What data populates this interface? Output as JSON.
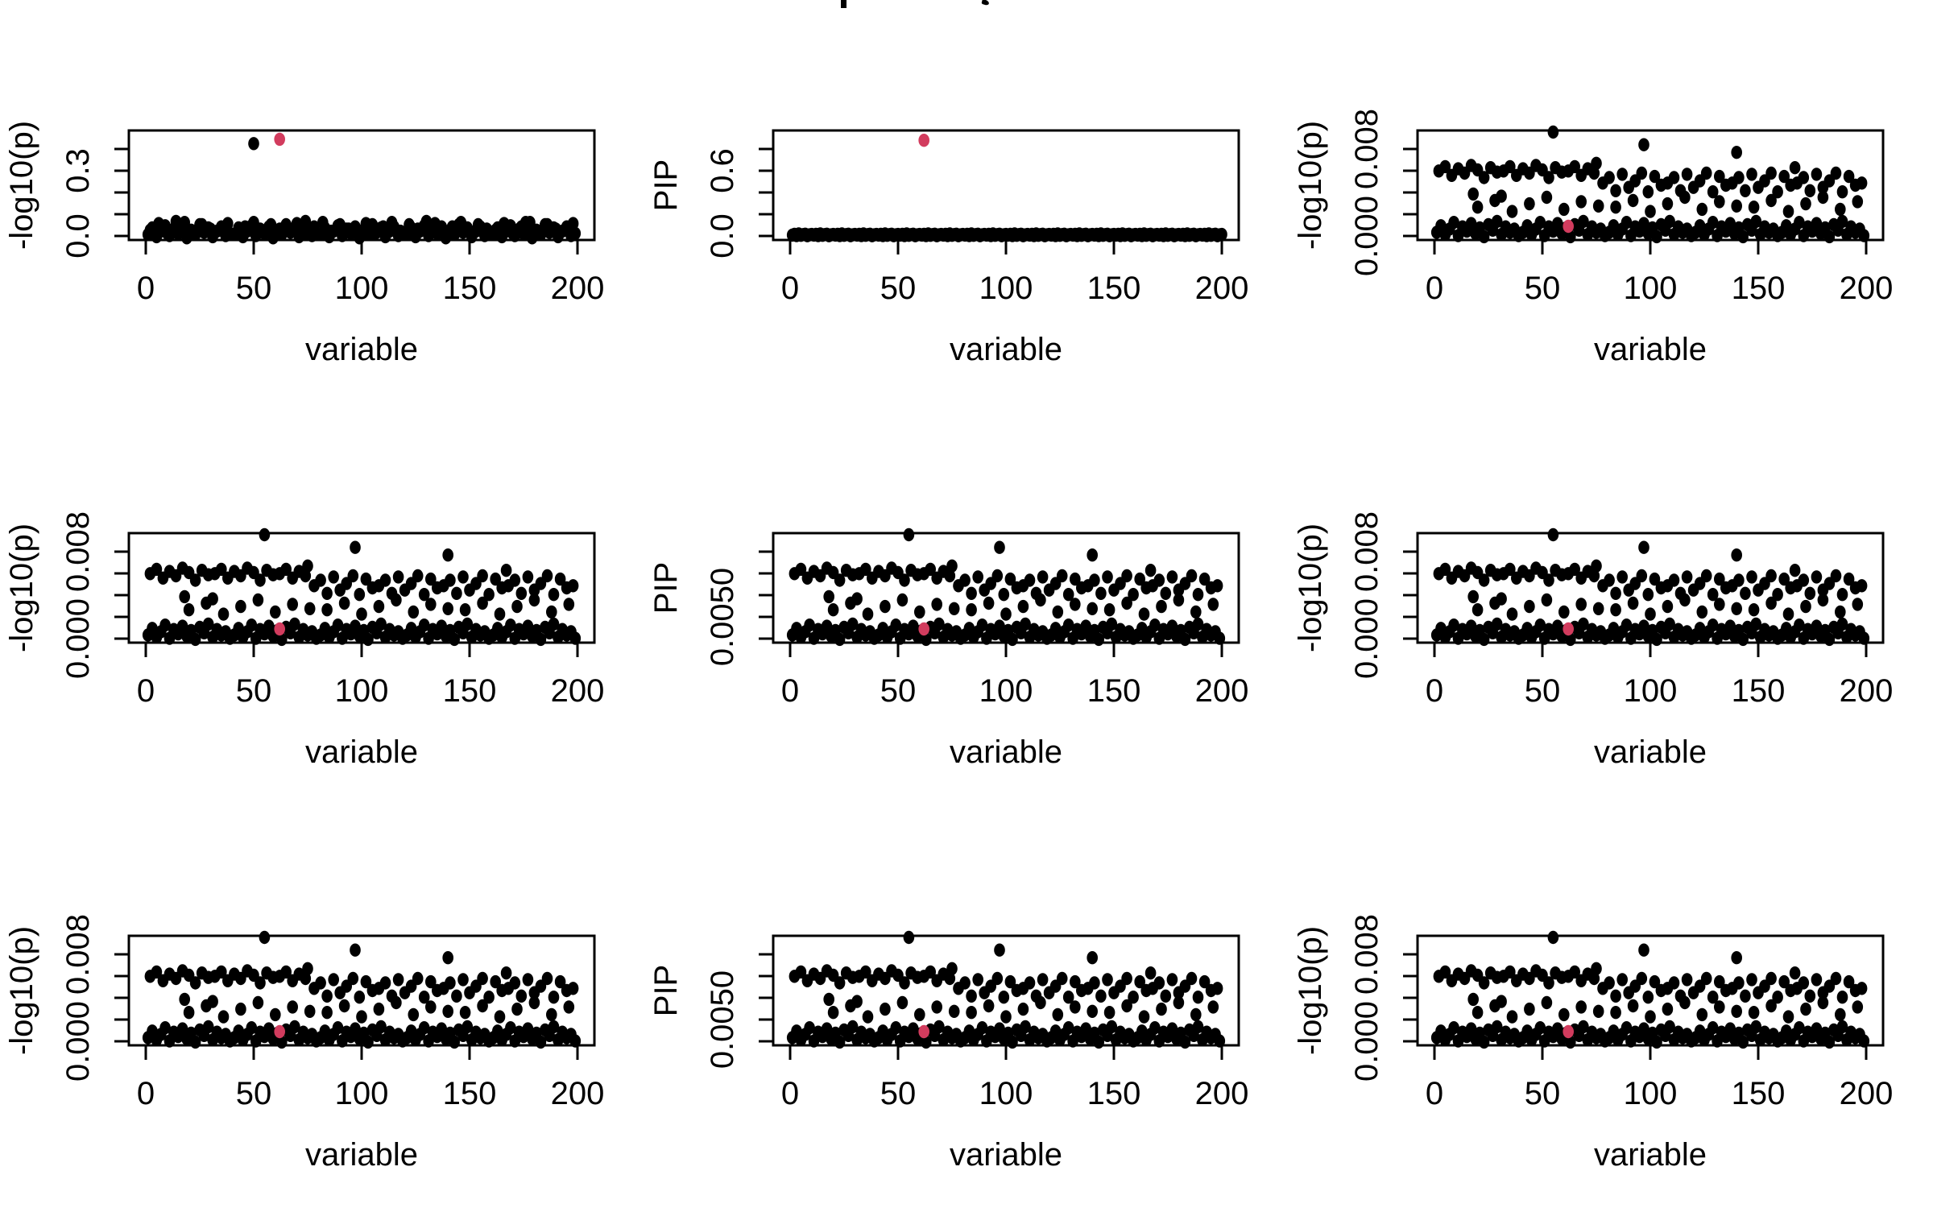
{
  "figure": {
    "background": "#ffffff",
    "header": {
      "title_clipped": true,
      "visible_title_fragments": [
        "bold-letter-descender",
        "comma"
      ]
    }
  },
  "colors": {
    "point": "#000000",
    "highlight": "#D23C5E",
    "axis": "#000000",
    "background": "#ffffff"
  },
  "chart_data": {
    "type": "scatter",
    "layout": "3x3-grid",
    "grid": {
      "rows": 3,
      "cols": 3
    },
    "x_axis": {
      "label": "variable",
      "range": [
        0,
        200
      ],
      "ticks": [
        0,
        50,
        100,
        150,
        200
      ]
    },
    "point_style": {
      "shape": "filled-circle",
      "color": "#000000",
      "highlight_color": "#D23C5E"
    },
    "panels": [
      {
        "id": "r1c1",
        "xlabel": "variable",
        "ylabel": "-log10(p)",
        "pattern": "gwas",
        "y_ticks_top_to_bottom": [
          0.4,
          0.3,
          0.2,
          0.1,
          0.0
        ],
        "y_tick_labels": [
          "",
          "0.3",
          "",
          "",
          "0.0"
        ],
        "ylim": [
          -0.018,
          0.485
        ],
        "red_point": {
          "x": 62,
          "y_norm": 0.92,
          "value": 0.43
        }
      },
      {
        "id": "r1c2",
        "xlabel": "variable",
        "ylabel": "PIP",
        "pattern": "flat",
        "y_ticks_top_to_bottom": [
          0.8,
          0.6,
          0.4,
          0.2,
          0.0
        ],
        "y_tick_labels": [
          "",
          "0.6",
          "",
          "",
          "0.0"
        ],
        "ylim": [
          -0.037,
          0.97
        ],
        "red_point": {
          "x": 62,
          "y_norm": 0.91,
          "value": 0.92
        }
      },
      {
        "id": "r1c3",
        "xlabel": "variable",
        "ylabel": "-log10(p)",
        "pattern": "band",
        "y_ticks_top_to_bottom": [
          0.008,
          0.006,
          0.004,
          0.002,
          0.0
        ],
        "y_tick_labels": [
          "0.008",
          "",
          "",
          "",
          "0.000"
        ],
        "ylim": [
          -0.0004,
          0.0097
        ],
        "red_point": {
          "x": 62,
          "y_norm": 0.125,
          "value": 0.0004
        }
      },
      {
        "id": "r2c1",
        "xlabel": "variable",
        "ylabel": "-log10(p)",
        "pattern": "band",
        "y_ticks_top_to_bottom": [
          0.008,
          0.006,
          0.004,
          0.002,
          0.0
        ],
        "y_tick_labels": [
          "0.008",
          "",
          "",
          "",
          "0.000"
        ],
        "ylim": [
          -0.0004,
          0.0097
        ],
        "red_point": {
          "x": 62,
          "y_norm": 0.125,
          "value": 0.0004
        }
      },
      {
        "id": "r2c2",
        "xlabel": "variable",
        "ylabel": "PIP",
        "pattern": "band",
        "y_ticks_top_to_bottom": [
          0.008,
          0.007,
          0.006,
          0.005,
          0.004
        ],
        "y_tick_labels": [
          "",
          "",
          "",
          "0.0050",
          ""
        ],
        "ylim": [
          0.0036,
          0.0089
        ],
        "red_point": {
          "x": 62,
          "y_norm": 0.125,
          "value": 0.0048
        }
      },
      {
        "id": "r2c3",
        "xlabel": "variable",
        "ylabel": "-log10(p)",
        "pattern": "band",
        "y_ticks_top_to_bottom": [
          0.008,
          0.006,
          0.004,
          0.002,
          0.0
        ],
        "y_tick_labels": [
          "0.008",
          "",
          "",
          "",
          "0.000"
        ],
        "ylim": [
          -0.0004,
          0.0097
        ],
        "red_point": {
          "x": 62,
          "y_norm": 0.125,
          "value": 0.0004
        }
      },
      {
        "id": "r3c1",
        "xlabel": "variable",
        "ylabel": "-log10(p)",
        "pattern": "band",
        "y_ticks_top_to_bottom": [
          0.008,
          0.006,
          0.004,
          0.002,
          0.0
        ],
        "y_tick_labels": [
          "0.008",
          "",
          "",
          "",
          "0.000"
        ],
        "ylim": [
          -0.0004,
          0.0097
        ],
        "red_point": {
          "x": 62,
          "y_norm": 0.125,
          "value": 0.0004
        }
      },
      {
        "id": "r3c2",
        "xlabel": "variable",
        "ylabel": "PIP",
        "pattern": "band",
        "y_ticks_top_to_bottom": [
          0.008,
          0.007,
          0.006,
          0.005,
          0.004
        ],
        "y_tick_labels": [
          "",
          "",
          "",
          "0.0050",
          ""
        ],
        "ylim": [
          0.0036,
          0.0089
        ],
        "red_point": {
          "x": 62,
          "y_norm": 0.125,
          "value": 0.0048
        }
      },
      {
        "id": "r3c3",
        "xlabel": "variable",
        "ylabel": "-log10(p)",
        "pattern": "band",
        "y_ticks_top_to_bottom": [
          0.008,
          0.006,
          0.004,
          0.002,
          0.0
        ],
        "y_tick_labels": [
          "0.008",
          "",
          "",
          "",
          "0.000"
        ],
        "ylim": [
          -0.0004,
          0.0097
        ],
        "red_point": {
          "x": 62,
          "y_norm": 0.125,
          "value": 0.0004
        }
      }
    ],
    "patterns": {
      "band": [
        {
          "x_from": 2,
          "x_to": 74,
          "x_step": 3,
          "y_cycle": [
            0.63,
            0.67,
            0.59,
            0.65,
            0.61,
            0.68,
            0.64,
            0.57,
            0.66,
            0.62
          ]
        },
        {
          "x_from": 78,
          "x_to": 198,
          "x_step": 3,
          "y_cycle": [
            0.52,
            0.57,
            0.45,
            0.6,
            0.48,
            0.54,
            0.61,
            0.44,
            0.58,
            0.5
          ]
        },
        {
          "x_from": 20,
          "x_to": 196,
          "x_step": 8,
          "y_cycle": [
            0.3,
            0.36,
            0.26,
            0.33,
            0.39,
            0.28,
            0.35,
            0.31
          ]
        },
        {
          "x_from": 1,
          "x_to": 199,
          "x_step": 2,
          "y_cycle": [
            0.07,
            0.13,
            0.05,
            0.1,
            0.16,
            0.04,
            0.12,
            0.08,
            0.15,
            0.06,
            0.11,
            0.03,
            0.14,
            0.09,
            0.17,
            0.05,
            0.12,
            0.07,
            0.1,
            0.04
          ]
        },
        {
          "points": [
            [
              55,
              0.985
            ],
            [
              97,
              0.87
            ],
            [
              140,
              0.8
            ],
            [
              75,
              0.7
            ],
            [
              167,
              0.66
            ],
            [
              18,
              0.42
            ],
            [
              31,
              0.4
            ]
          ]
        }
      ],
      "gwas": [
        {
          "x_from": 1,
          "x_to": 199,
          "x_step": 2,
          "y_cycle": [
            0.05,
            0.11,
            0.03,
            0.08,
            0.13,
            0.04,
            0.1,
            0.06,
            0.12,
            0.02,
            0.09,
            0.05,
            0.14,
            0.07,
            0.11,
            0.03,
            0.08,
            0.12,
            0.04,
            0.06
          ]
        },
        {
          "x_from": 2,
          "x_to": 198,
          "x_step": 4,
          "y_cycle": [
            0.09,
            0.15,
            0.06,
            0.12,
            0.16,
            0.08,
            0.14,
            0.1
          ]
        },
        {
          "points": [
            [
              50,
              0.88
            ],
            [
              14,
              0.17
            ],
            [
              74,
              0.17
            ],
            [
              130,
              0.17
            ],
            [
              176,
              0.16
            ]
          ]
        }
      ],
      "flat": [
        {
          "x_from": 1,
          "x_to": 200,
          "x_step": 1,
          "y_cycle": [
            0.045,
            0.052,
            0.04,
            0.056,
            0.043,
            0.049,
            0.053,
            0.039,
            0.047,
            0.051
          ]
        }
      ]
    }
  }
}
